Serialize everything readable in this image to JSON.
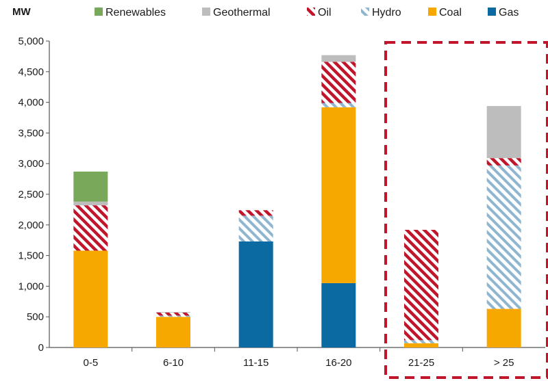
{
  "chart_data": {
    "type": "bar",
    "stacked": true,
    "unit_label": "MW",
    "categories": [
      "0-5",
      "6-10",
      "11-15",
      "16-20",
      "21-25",
      "> 25"
    ],
    "yticks": [
      "0",
      "500",
      "1,000",
      "1,500",
      "2,000",
      "2,500",
      "3,000",
      "3,500",
      "4,000",
      "4,500",
      "5,000"
    ],
    "ylim": [
      0,
      5000
    ],
    "legend_position": "top",
    "legend": [
      "Renewables",
      "Geothermal",
      "Oil",
      "Hydro",
      "Coal",
      "Gas"
    ],
    "series": [
      {
        "name": "Gas",
        "color": "#0a6aa1",
        "pattern": "solid",
        "values": [
          0,
          0,
          1730,
          1050,
          0,
          0
        ]
      },
      {
        "name": "Coal",
        "color": "#f6a800",
        "pattern": "solid",
        "values": [
          1580,
          500,
          0,
          2870,
          70,
          630
        ]
      },
      {
        "name": "Hydro",
        "color": "#8fb6d0",
        "pattern": "hatch-light",
        "values": [
          0,
          20,
          420,
          70,
          50,
          2340
        ]
      },
      {
        "name": "Oil",
        "color": "#c0152a",
        "pattern": "hatch-dark",
        "values": [
          740,
          50,
          90,
          670,
          1800,
          120
        ]
      },
      {
        "name": "Geothermal",
        "color": "#bdbdbd",
        "pattern": "solid",
        "values": [
          60,
          10,
          0,
          110,
          0,
          850
        ]
      },
      {
        "name": "Renewables",
        "color": "#7aa85a",
        "pattern": "solid",
        "values": [
          490,
          0,
          0,
          0,
          0,
          0
        ]
      }
    ],
    "highlight_box": {
      "categories": [
        "21-25",
        "> 25"
      ],
      "color": "#c0152a",
      "style": "dashed"
    }
  }
}
